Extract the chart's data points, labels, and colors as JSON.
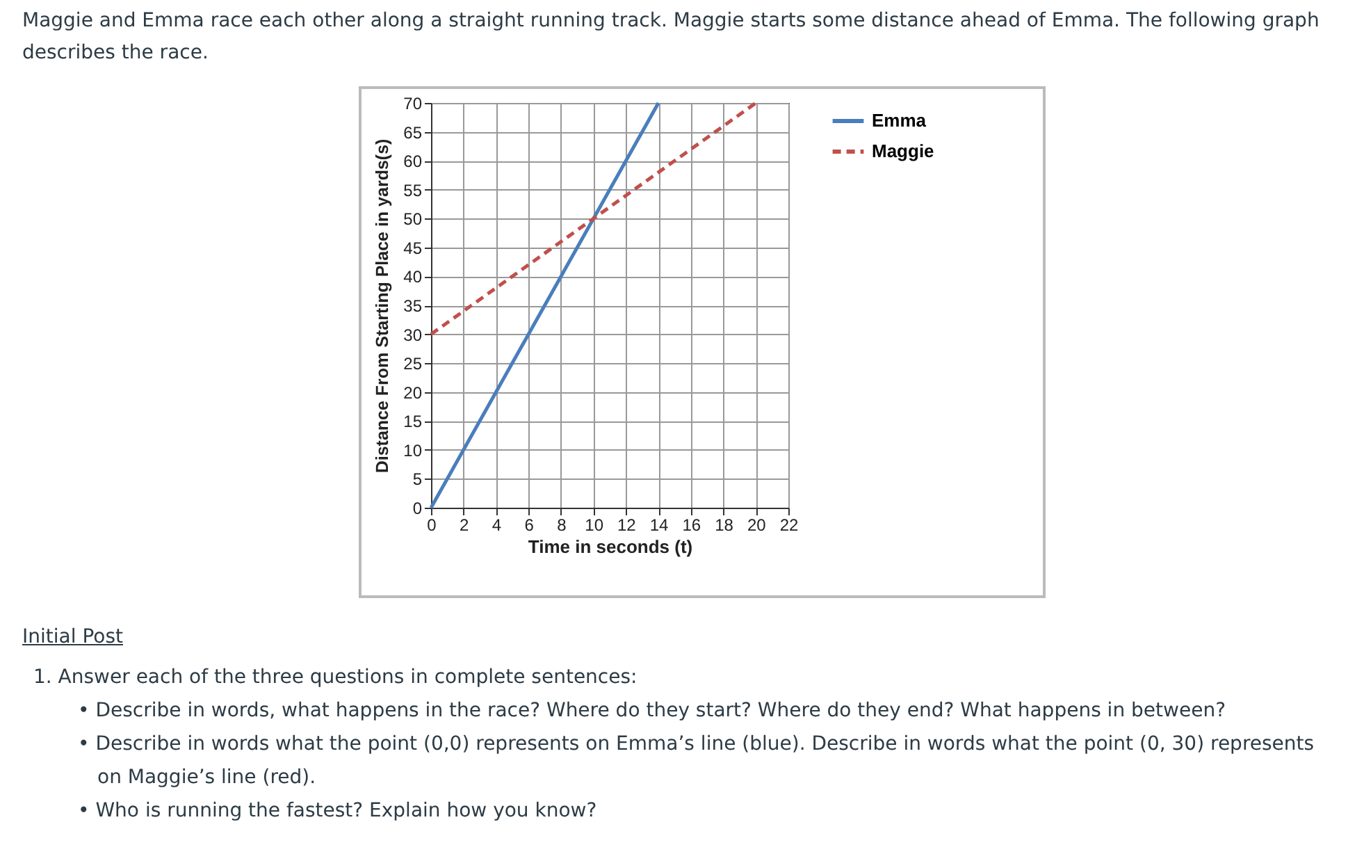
{
  "chart_data": {
    "type": "line",
    "title": "Maggie and Emma race each other along a straight running track. Maggie starts some distance ahead of Emma. The following graph describes the race.",
    "xlabel": "Time in seconds (t)",
    "ylabel": "Distance From Starting Place in yards(s)",
    "series": [
      {
        "name": "Emma",
        "color": "#4a7ebb",
        "line_style": "solid",
        "x": [
          0,
          14
        ],
        "values": [
          0,
          70
        ]
      },
      {
        "name": "Maggie",
        "color": "#c0504d",
        "line_style": "dashed",
        "x": [
          0,
          20
        ],
        "values": [
          30,
          70
        ]
      }
    ],
    "xlim": [
      0,
      22
    ],
    "xticks": [
      0,
      2,
      4,
      6,
      8,
      10,
      12,
      14,
      16,
      18,
      20,
      22
    ],
    "ylim": [
      0,
      70
    ],
    "yticks": [
      0,
      5,
      10,
      15,
      20,
      25,
      30,
      35,
      40,
      45,
      50,
      55,
      60,
      65,
      70
    ],
    "grid": true,
    "legend": "top right",
    "annotations": [
      "Initial Post",
      "1. Answer each of the three questions in complete sentences:",
      "• Describe in words, what happens in the race? Where do they start? Where do they end? What happens in between?",
      "• Describe in words what the point (0,0) represents on Emma’s line (blue). Describe in words what the point (0, 30) represents on Maggie’s line (red).",
      "• Who is running the fastest? Explain how you know?"
    ]
  }
}
